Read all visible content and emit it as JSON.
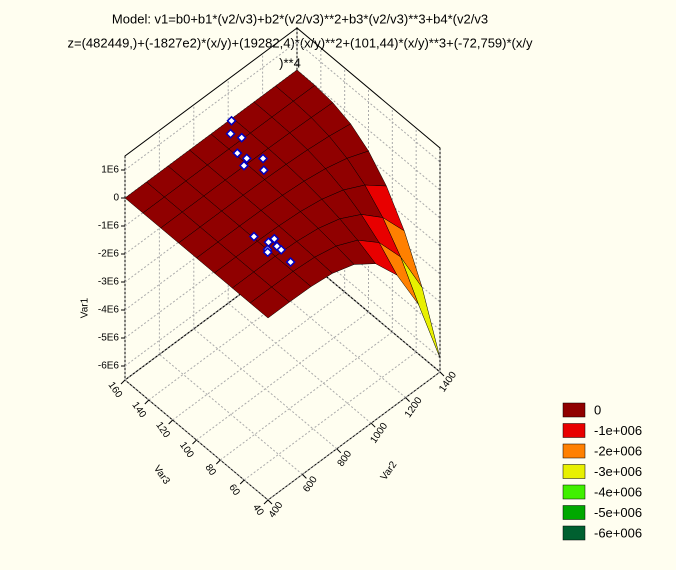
{
  "chart_data": {
    "type": "surface3d",
    "title_lines": [
      "Model: v1=b0+b1*(v2/v3)+b2*(v2/v3)**2+b3*(v2/v3)**3+b4*(v2/v3",
      "z=(482449,)+(-1827e2)*(x/y)+(19282,4)*(x/y)**2+(101,44)*(x/y)**3+(-72,759)*(x/y",
      ")**4"
    ],
    "x_label": "Var2",
    "y_label": "Var3",
    "z_label": "Var1",
    "xlim": [
      400,
      1400
    ],
    "xticks": [
      400,
      600,
      800,
      1000,
      1200,
      1400
    ],
    "ylim": [
      40,
      160
    ],
    "yticks": [
      40,
      60,
      80,
      100,
      120,
      140,
      160
    ],
    "zlim": [
      -6500000,
      1500000
    ],
    "zticks": [
      {
        "value": 1000000,
        "label": "1E6"
      },
      0,
      {
        "value": -1000000,
        "label": "-1E6"
      },
      {
        "value": -2000000,
        "label": "-2E6"
      },
      {
        "value": -3000000,
        "label": "-3E6"
      },
      {
        "value": -4000000,
        "label": "-4E6"
      },
      {
        "value": -5000000,
        "label": "-5E6"
      },
      {
        "value": -6000000,
        "label": "-6E6"
      }
    ],
    "grid": true,
    "surface": {
      "x": [
        400,
        525,
        650,
        775,
        900,
        1025,
        1150,
        1275,
        1400
      ],
      "y": [
        40,
        55,
        70,
        85,
        100,
        115,
        130,
        145,
        160
      ],
      "z": [
        [
          0,
          0,
          0,
          0,
          0,
          0,
          0,
          0,
          0
        ],
        [
          -1500,
          -1000,
          -600,
          -400,
          -200,
          -100,
          0,
          0,
          0
        ],
        [
          -23400,
          -15700,
          -9900,
          -5700,
          -2900,
          -1200,
          -400,
          0,
          0
        ],
        [
          -118800,
          -79600,
          -50100,
          -29000,
          -14900,
          -6300,
          -1900,
          -200,
          0
        ],
        [
          -375000,
          -251200,
          -158200,
          -91500,
          -46900,
          -19800,
          -5900,
          -700,
          0
        ],
        [
          -915600,
          -613400,
          -386300,
          -223500,
          -114500,
          -48300,
          -14300,
          -1800,
          0
        ],
        [
          -1898400,
          -1271700,
          -800900,
          -463400,
          -237300,
          -100000,
          -29600,
          -3700,
          0
        ],
        [
          -3517200,
          -2356200,
          -1483900,
          -858600,
          -439700,
          -185400,
          -54900,
          -6900,
          0
        ],
        [
          -6000000,
          -4019400,
          -2531400,
          -1464600,
          -750000,
          -316200,
          -93600,
          -11700,
          0
        ]
      ]
    },
    "points": {
      "color": "#0000c0",
      "x": [
        900,
        940,
        960,
        880,
        910,
        930,
        870,
        950,
        640,
        660,
        680,
        620,
        650,
        700,
        630,
        670
      ],
      "y": [
        130,
        140,
        125,
        135,
        145,
        120,
        128,
        150,
        75,
        70,
        80,
        72,
        65,
        78,
        85,
        60
      ],
      "z": [
        200000,
        400000,
        100000,
        300000,
        500000,
        0,
        150000,
        600000,
        100000,
        300000,
        0,
        200000,
        400000,
        100000,
        250000,
        50000
      ]
    },
    "legend": [
      {
        "value": 0,
        "label": "0",
        "color": "#900000"
      },
      {
        "value": -1000000,
        "label": "-1e+006",
        "color": "#e80000"
      },
      {
        "value": -2000000,
        "label": "-2e+006",
        "color": "#ff8000"
      },
      {
        "value": -3000000,
        "label": "-3e+006",
        "color": "#e8f000"
      },
      {
        "value": -4000000,
        "label": "-4e+006",
        "color": "#40f000"
      },
      {
        "value": -5000000,
        "label": "-5e+006",
        "color": "#00a800"
      },
      {
        "value": -6000000,
        "label": "-6e+006",
        "color": "#006030"
      }
    ]
  }
}
